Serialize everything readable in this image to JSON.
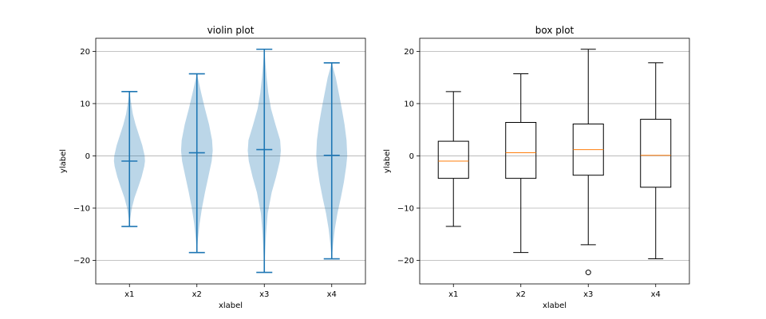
{
  "chart_data": [
    {
      "type": "violin",
      "title": "violin plot",
      "xlabel": "xlabel",
      "ylabel": "ylabel",
      "categories": [
        "x1",
        "x2",
        "x3",
        "x4"
      ],
      "ylim": [
        -24.5,
        22.5
      ],
      "yticks": [
        -20,
        -10,
        0,
        10,
        20
      ],
      "grid": "y",
      "color": "#1f77b4",
      "series": [
        {
          "min": -13.5,
          "max": 12.3,
          "median": -1.0,
          "profile": [
            [
              -13.5,
              0.0
            ],
            [
              -12,
              0.02
            ],
            [
              -10,
              0.07
            ],
            [
              -8,
              0.15
            ],
            [
              -6,
              0.26
            ],
            [
              -4,
              0.36
            ],
            [
              -2,
              0.44
            ],
            [
              -1,
              0.46
            ],
            [
              0,
              0.45
            ],
            [
              2,
              0.38
            ],
            [
              4,
              0.28
            ],
            [
              6,
              0.18
            ],
            [
              8,
              0.1
            ],
            [
              10,
              0.05
            ],
            [
              12.3,
              0.0
            ]
          ]
        },
        {
          "min": -18.5,
          "max": 15.7,
          "median": 0.6,
          "profile": [
            [
              -18.5,
              0.0
            ],
            [
              -16,
              0.03
            ],
            [
              -13,
              0.08
            ],
            [
              -10,
              0.15
            ],
            [
              -7,
              0.24
            ],
            [
              -4,
              0.34
            ],
            [
              -1,
              0.44
            ],
            [
              1,
              0.47
            ],
            [
              3,
              0.45
            ],
            [
              6,
              0.36
            ],
            [
              9,
              0.24
            ],
            [
              12,
              0.13
            ],
            [
              14,
              0.06
            ],
            [
              15.7,
              0.0
            ]
          ]
        },
        {
          "min": -22.3,
          "max": 20.4,
          "median": 1.2,
          "profile": [
            [
              -22.3,
              0.0
            ],
            [
              -19,
              0.02
            ],
            [
              -15,
              0.05
            ],
            [
              -11,
              0.1
            ],
            [
              -7,
              0.22
            ],
            [
              -4,
              0.35
            ],
            [
              -1,
              0.46
            ],
            [
              1,
              0.49
            ],
            [
              3,
              0.47
            ],
            [
              6,
              0.33
            ],
            [
              9,
              0.2
            ],
            [
              12,
              0.12
            ],
            [
              15,
              0.07
            ],
            [
              18,
              0.03
            ],
            [
              20.4,
              0.0
            ]
          ]
        },
        {
          "min": -19.7,
          "max": 17.8,
          "median": 0.1,
          "profile": [
            [
              -19.7,
              0.0
            ],
            [
              -17,
              0.04
            ],
            [
              -14,
              0.09
            ],
            [
              -11,
              0.17
            ],
            [
              -8,
              0.27
            ],
            [
              -5,
              0.36
            ],
            [
              -2,
              0.43
            ],
            [
              0,
              0.46
            ],
            [
              3,
              0.44
            ],
            [
              6,
              0.38
            ],
            [
              9,
              0.3
            ],
            [
              12,
              0.21
            ],
            [
              15,
              0.12
            ],
            [
              17.8,
              0.0
            ]
          ]
        }
      ]
    },
    {
      "type": "box",
      "title": "box plot",
      "xlabel": "xlabel",
      "ylabel": "ylabel",
      "categories": [
        "x1",
        "x2",
        "x3",
        "x4"
      ],
      "ylim": [
        -24.5,
        22.5
      ],
      "yticks": [
        -20,
        -10,
        0,
        10,
        20
      ],
      "grid": "y",
      "box_color": "#000000",
      "median_color": "#ff7f0e",
      "series": [
        {
          "whisker_low": -13.5,
          "q1": -4.3,
          "median": -1.0,
          "q3": 2.8,
          "whisker_high": 12.3,
          "fliers": []
        },
        {
          "whisker_low": -18.5,
          "q1": -4.3,
          "median": 0.6,
          "q3": 6.4,
          "whisker_high": 15.7,
          "fliers": []
        },
        {
          "whisker_low": -17.0,
          "q1": -3.7,
          "median": 1.2,
          "q3": 6.1,
          "whisker_high": 20.4,
          "fliers": [
            -22.3
          ]
        },
        {
          "whisker_low": -19.7,
          "q1": -6.0,
          "median": 0.1,
          "q3": 7.0,
          "whisker_high": 17.8,
          "fliers": []
        }
      ]
    }
  ]
}
